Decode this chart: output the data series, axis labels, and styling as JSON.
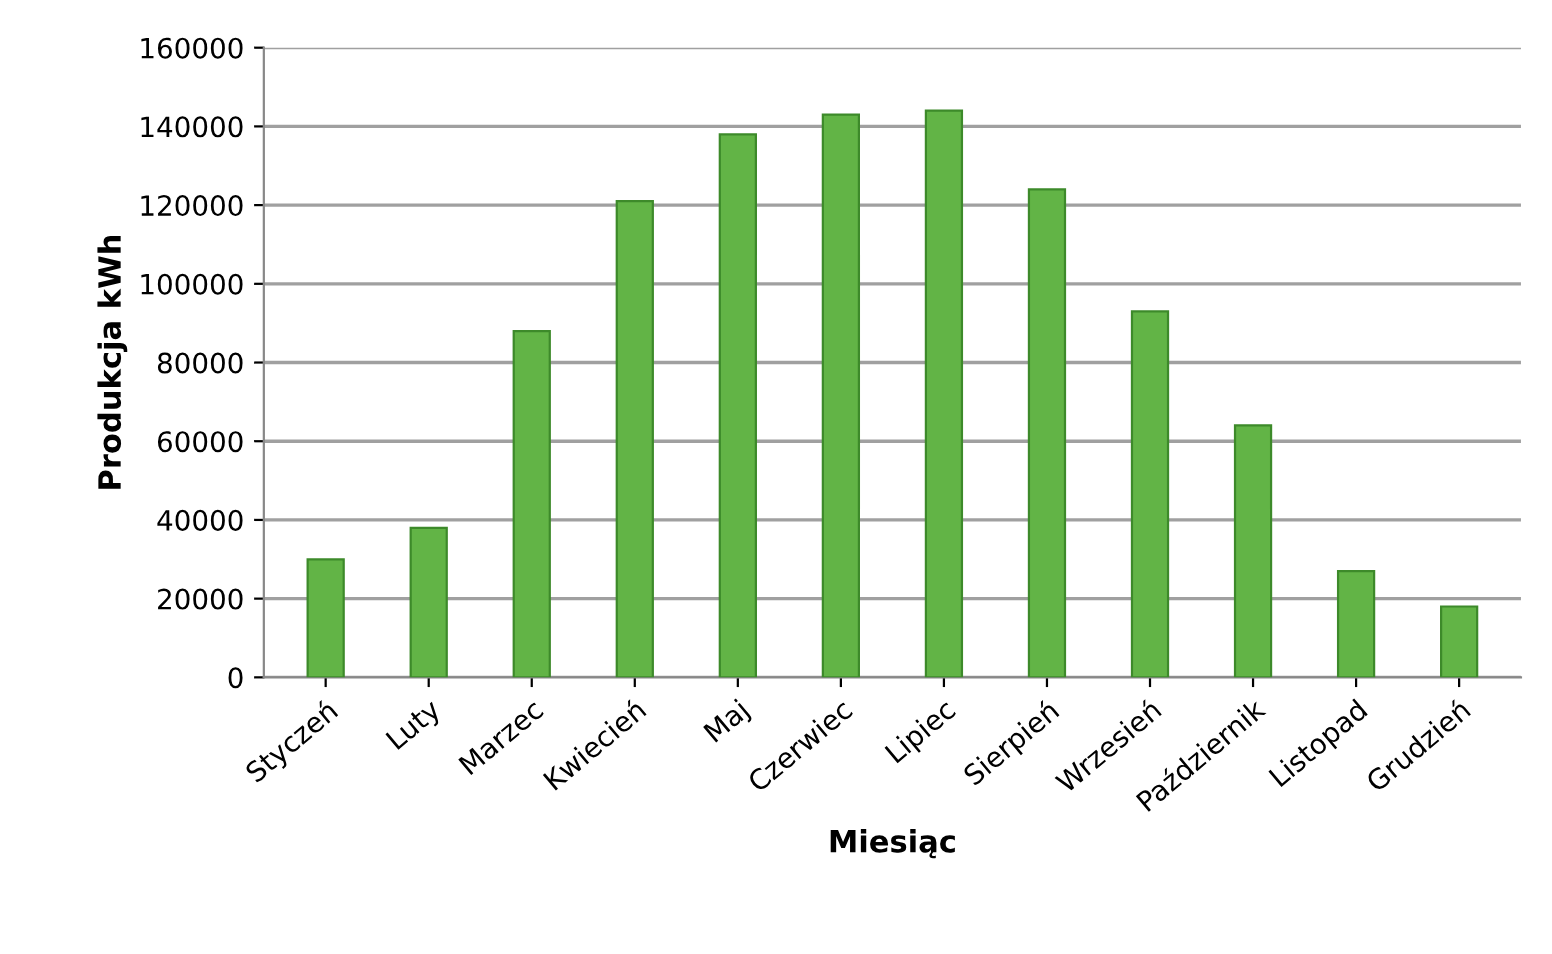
{
  "chart_data": {
    "type": "bar",
    "categories": [
      "Styczeń",
      "Luty",
      "Marzec",
      "Kwiecień",
      "Maj",
      "Czerwiec",
      "Lipiec",
      "Sierpień",
      "Wrzesień",
      "Październik",
      "Listopad",
      "Grudzień"
    ],
    "values": [
      30000,
      38000,
      88000,
      121000,
      138000,
      143000,
      144000,
      124000,
      93000,
      64000,
      27000,
      18000
    ],
    "color": "#62b446",
    "xlabel": "Miesiąc",
    "ylabel": "Produkcja kWh",
    "ylim": [
      0,
      160000
    ],
    "yticks": [
      0,
      20000,
      40000,
      60000,
      80000,
      100000,
      120000,
      140000,
      160000
    ],
    "grid": "y",
    "legend": false
  }
}
